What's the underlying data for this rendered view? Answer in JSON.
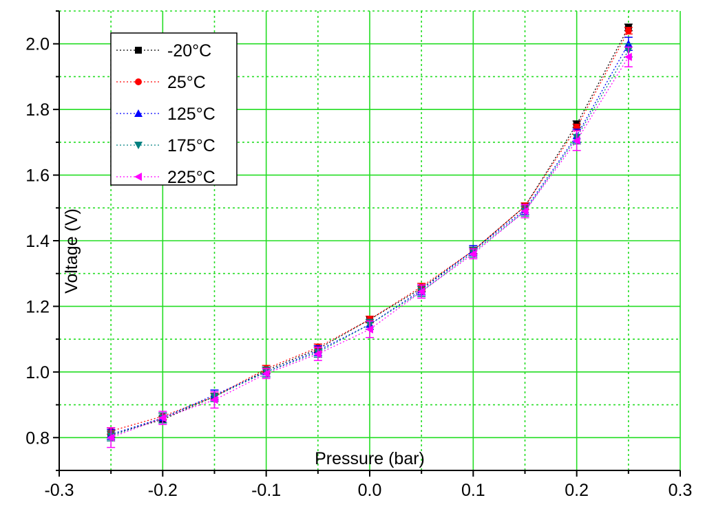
{
  "chart_data": {
    "type": "scatter",
    "title": "",
    "xlabel": "Pressure (bar)",
    "ylabel": "Voltage (V)",
    "xlim": [
      -0.3,
      0.3
    ],
    "ylim": [
      0.7,
      2.1
    ],
    "x_ticks": [
      "-0.3",
      "-0.2",
      "-0.1",
      "0.0",
      "0.1",
      "0.2",
      "0.3"
    ],
    "x_tick_values": [
      -0.3,
      -0.2,
      -0.1,
      0.0,
      0.1,
      0.2,
      0.3
    ],
    "y_ticks": [
      "0.8",
      "1.0",
      "1.2",
      "1.4",
      "1.6",
      "1.8",
      "2.0"
    ],
    "y_tick_values": [
      0.8,
      1.0,
      1.2,
      1.4,
      1.6,
      1.8,
      2.0
    ],
    "grid": true,
    "grid_color": "#22dd22",
    "legend_position": "top-left",
    "x": [
      -0.25,
      -0.2,
      -0.15,
      -0.1,
      -0.05,
      0.0,
      0.05,
      0.1,
      0.15,
      0.2,
      0.25
    ],
    "series": [
      {
        "name": "-20°C",
        "marker": "square",
        "color": "#000000",
        "values": [
          0.81,
          0.855,
          0.925,
          1.005,
          1.07,
          1.16,
          1.255,
          1.37,
          1.505,
          1.755,
          2.05
        ],
        "errors": [
          0.01,
          0.01,
          0.01,
          0.01,
          0.01,
          0.01,
          0.01,
          0.01,
          0.01,
          0.01,
          0.01
        ]
      },
      {
        "name": "25°C",
        "marker": "circle",
        "color": "#ff0000",
        "values": [
          0.82,
          0.865,
          0.925,
          1.01,
          1.075,
          1.16,
          1.26,
          1.37,
          1.505,
          1.745,
          2.04
        ],
        "errors": [
          0.01,
          0.01,
          0.01,
          0.01,
          0.01,
          0.01,
          0.01,
          0.01,
          0.01,
          0.01,
          0.01
        ]
      },
      {
        "name": "125°C",
        "marker": "triangle-up",
        "color": "#0000ff",
        "values": [
          0.81,
          0.86,
          0.93,
          1.0,
          1.065,
          1.145,
          1.25,
          1.37,
          1.495,
          1.72,
          2.0
        ],
        "errors": [
          0.015,
          0.015,
          0.015,
          0.015,
          0.015,
          0.015,
          0.015,
          0.015,
          0.015,
          0.02,
          0.02
        ]
      },
      {
        "name": "175°C",
        "marker": "triangle-down",
        "color": "#008080",
        "values": [
          0.805,
          0.86,
          0.925,
          1.0,
          1.06,
          1.145,
          1.245,
          1.365,
          1.49,
          1.715,
          1.98
        ],
        "errors": [
          0.015,
          0.015,
          0.015,
          0.015,
          0.015,
          0.015,
          0.015,
          0.015,
          0.015,
          0.02,
          0.02
        ]
      },
      {
        "name": "225°C",
        "marker": "triangle-left",
        "color": "#ff00ff",
        "values": [
          0.8,
          0.86,
          0.915,
          0.995,
          1.055,
          1.13,
          1.245,
          1.36,
          1.49,
          1.705,
          1.96
        ],
        "errors": [
          0.03,
          0.02,
          0.025,
          0.015,
          0.02,
          0.025,
          0.02,
          0.015,
          0.02,
          0.03,
          0.03
        ]
      }
    ]
  }
}
